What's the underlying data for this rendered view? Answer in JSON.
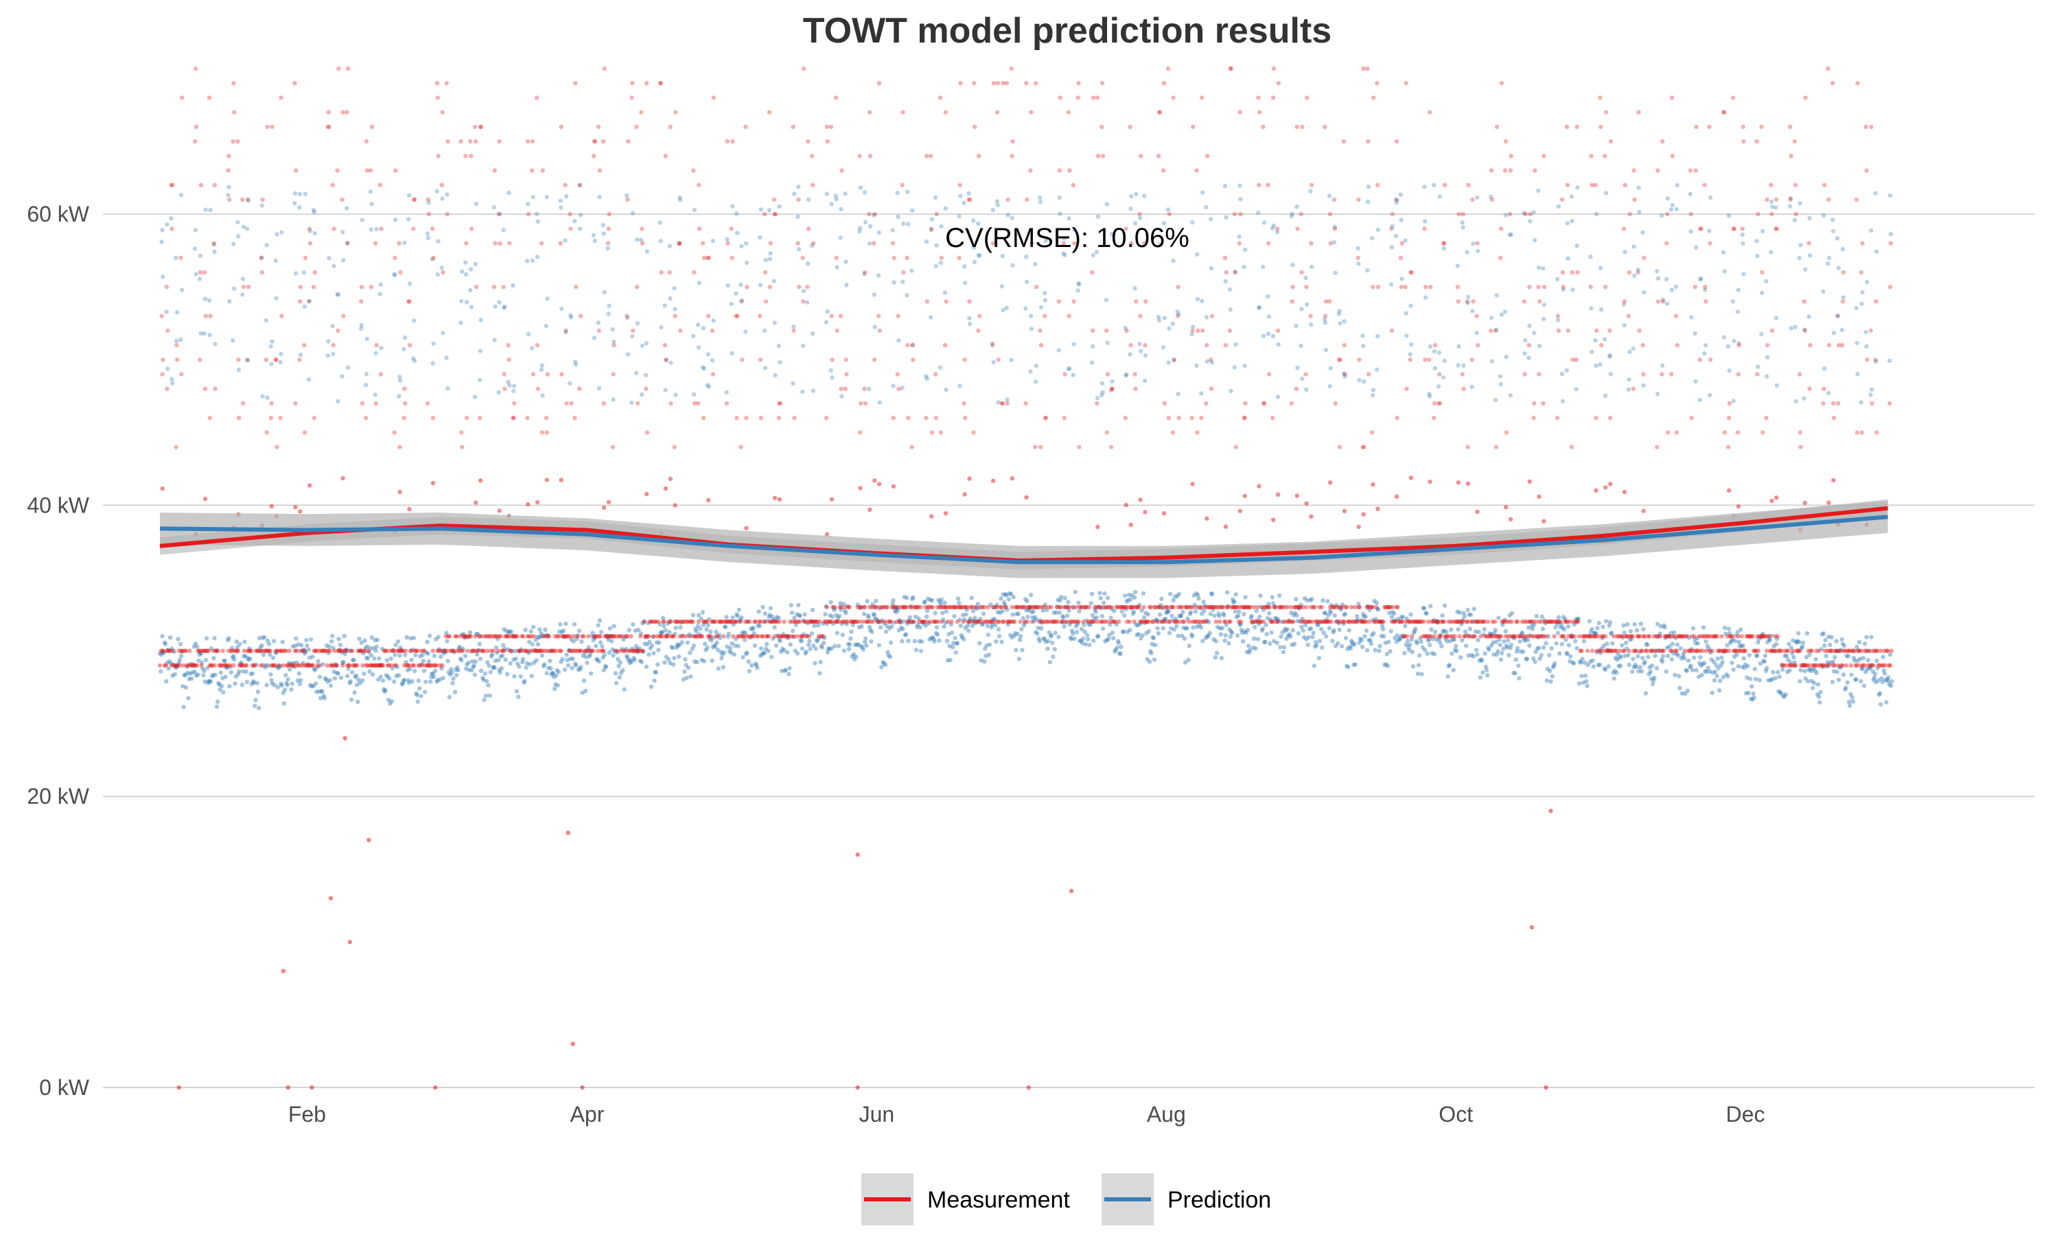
{
  "chart_data": {
    "type": "scatter",
    "title": "TOWT model prediction results",
    "xlabel": "",
    "ylabel": "",
    "x_ticks": [
      "Feb",
      "Apr",
      "Jun",
      "Aug",
      "Oct",
      "Dec"
    ],
    "x_tick_dates": [
      "2019-02-01",
      "2019-04-01",
      "2019-06-01",
      "2019-08-01",
      "2019-10-01",
      "2019-12-01"
    ],
    "xlim": [
      "2018-12-20",
      "2020-01-31"
    ],
    "y_ticks": [
      "0 kW",
      "20 kW",
      "40 kW",
      "60 kW"
    ],
    "y_tick_values": [
      0,
      20,
      40,
      60
    ],
    "ylim": [
      0,
      70
    ],
    "grid": true,
    "annotation": "CV(RMSE): 10.06%",
    "legend_position": "bottom",
    "series": [
      {
        "name": "Measurement",
        "color": "#e41a1c",
        "point_opacity": 0.35,
        "baseline_levels_kw": [
          31,
          32,
          30,
          29,
          27,
          28
        ],
        "high_levels_kw": [
          62,
          63,
          64,
          65,
          67,
          69
        ],
        "trend": [
          [
            "2019-01-01",
            37.2
          ],
          [
            "2019-02-01",
            38.1
          ],
          [
            "2019-03-01",
            38.6
          ],
          [
            "2019-04-01",
            38.3
          ],
          [
            "2019-05-01",
            37.3
          ],
          [
            "2019-06-01",
            36.7
          ],
          [
            "2019-07-01",
            36.2
          ],
          [
            "2019-08-01",
            36.4
          ],
          [
            "2019-09-01",
            36.8
          ],
          [
            "2019-10-01",
            37.2
          ],
          [
            "2019-11-01",
            37.9
          ],
          [
            "2019-12-01",
            38.8
          ],
          [
            "2019-12-31",
            39.8
          ]
        ]
      },
      {
        "name": "Prediction",
        "color": "#377eb8",
        "point_opacity": 0.35,
        "low_band_kw": [
          27.5,
          35
        ],
        "high_band_kw": [
          46,
          62
        ],
        "trend": [
          [
            "2019-01-01",
            38.4
          ],
          [
            "2019-02-01",
            38.3
          ],
          [
            "2019-03-01",
            38.4
          ],
          [
            "2019-04-01",
            38.0
          ],
          [
            "2019-05-01",
            37.2
          ],
          [
            "2019-06-01",
            36.6
          ],
          [
            "2019-07-01",
            36.1
          ],
          [
            "2019-08-01",
            36.1
          ],
          [
            "2019-09-01",
            36.4
          ],
          [
            "2019-10-01",
            37.0
          ],
          [
            "2019-11-01",
            37.6
          ],
          [
            "2019-12-01",
            38.4
          ],
          [
            "2019-12-31",
            39.2
          ]
        ]
      }
    ],
    "confidence_band_color": "#b3b3b3",
    "date_range": [
      "2019-01-01",
      "2019-12-31"
    ]
  }
}
